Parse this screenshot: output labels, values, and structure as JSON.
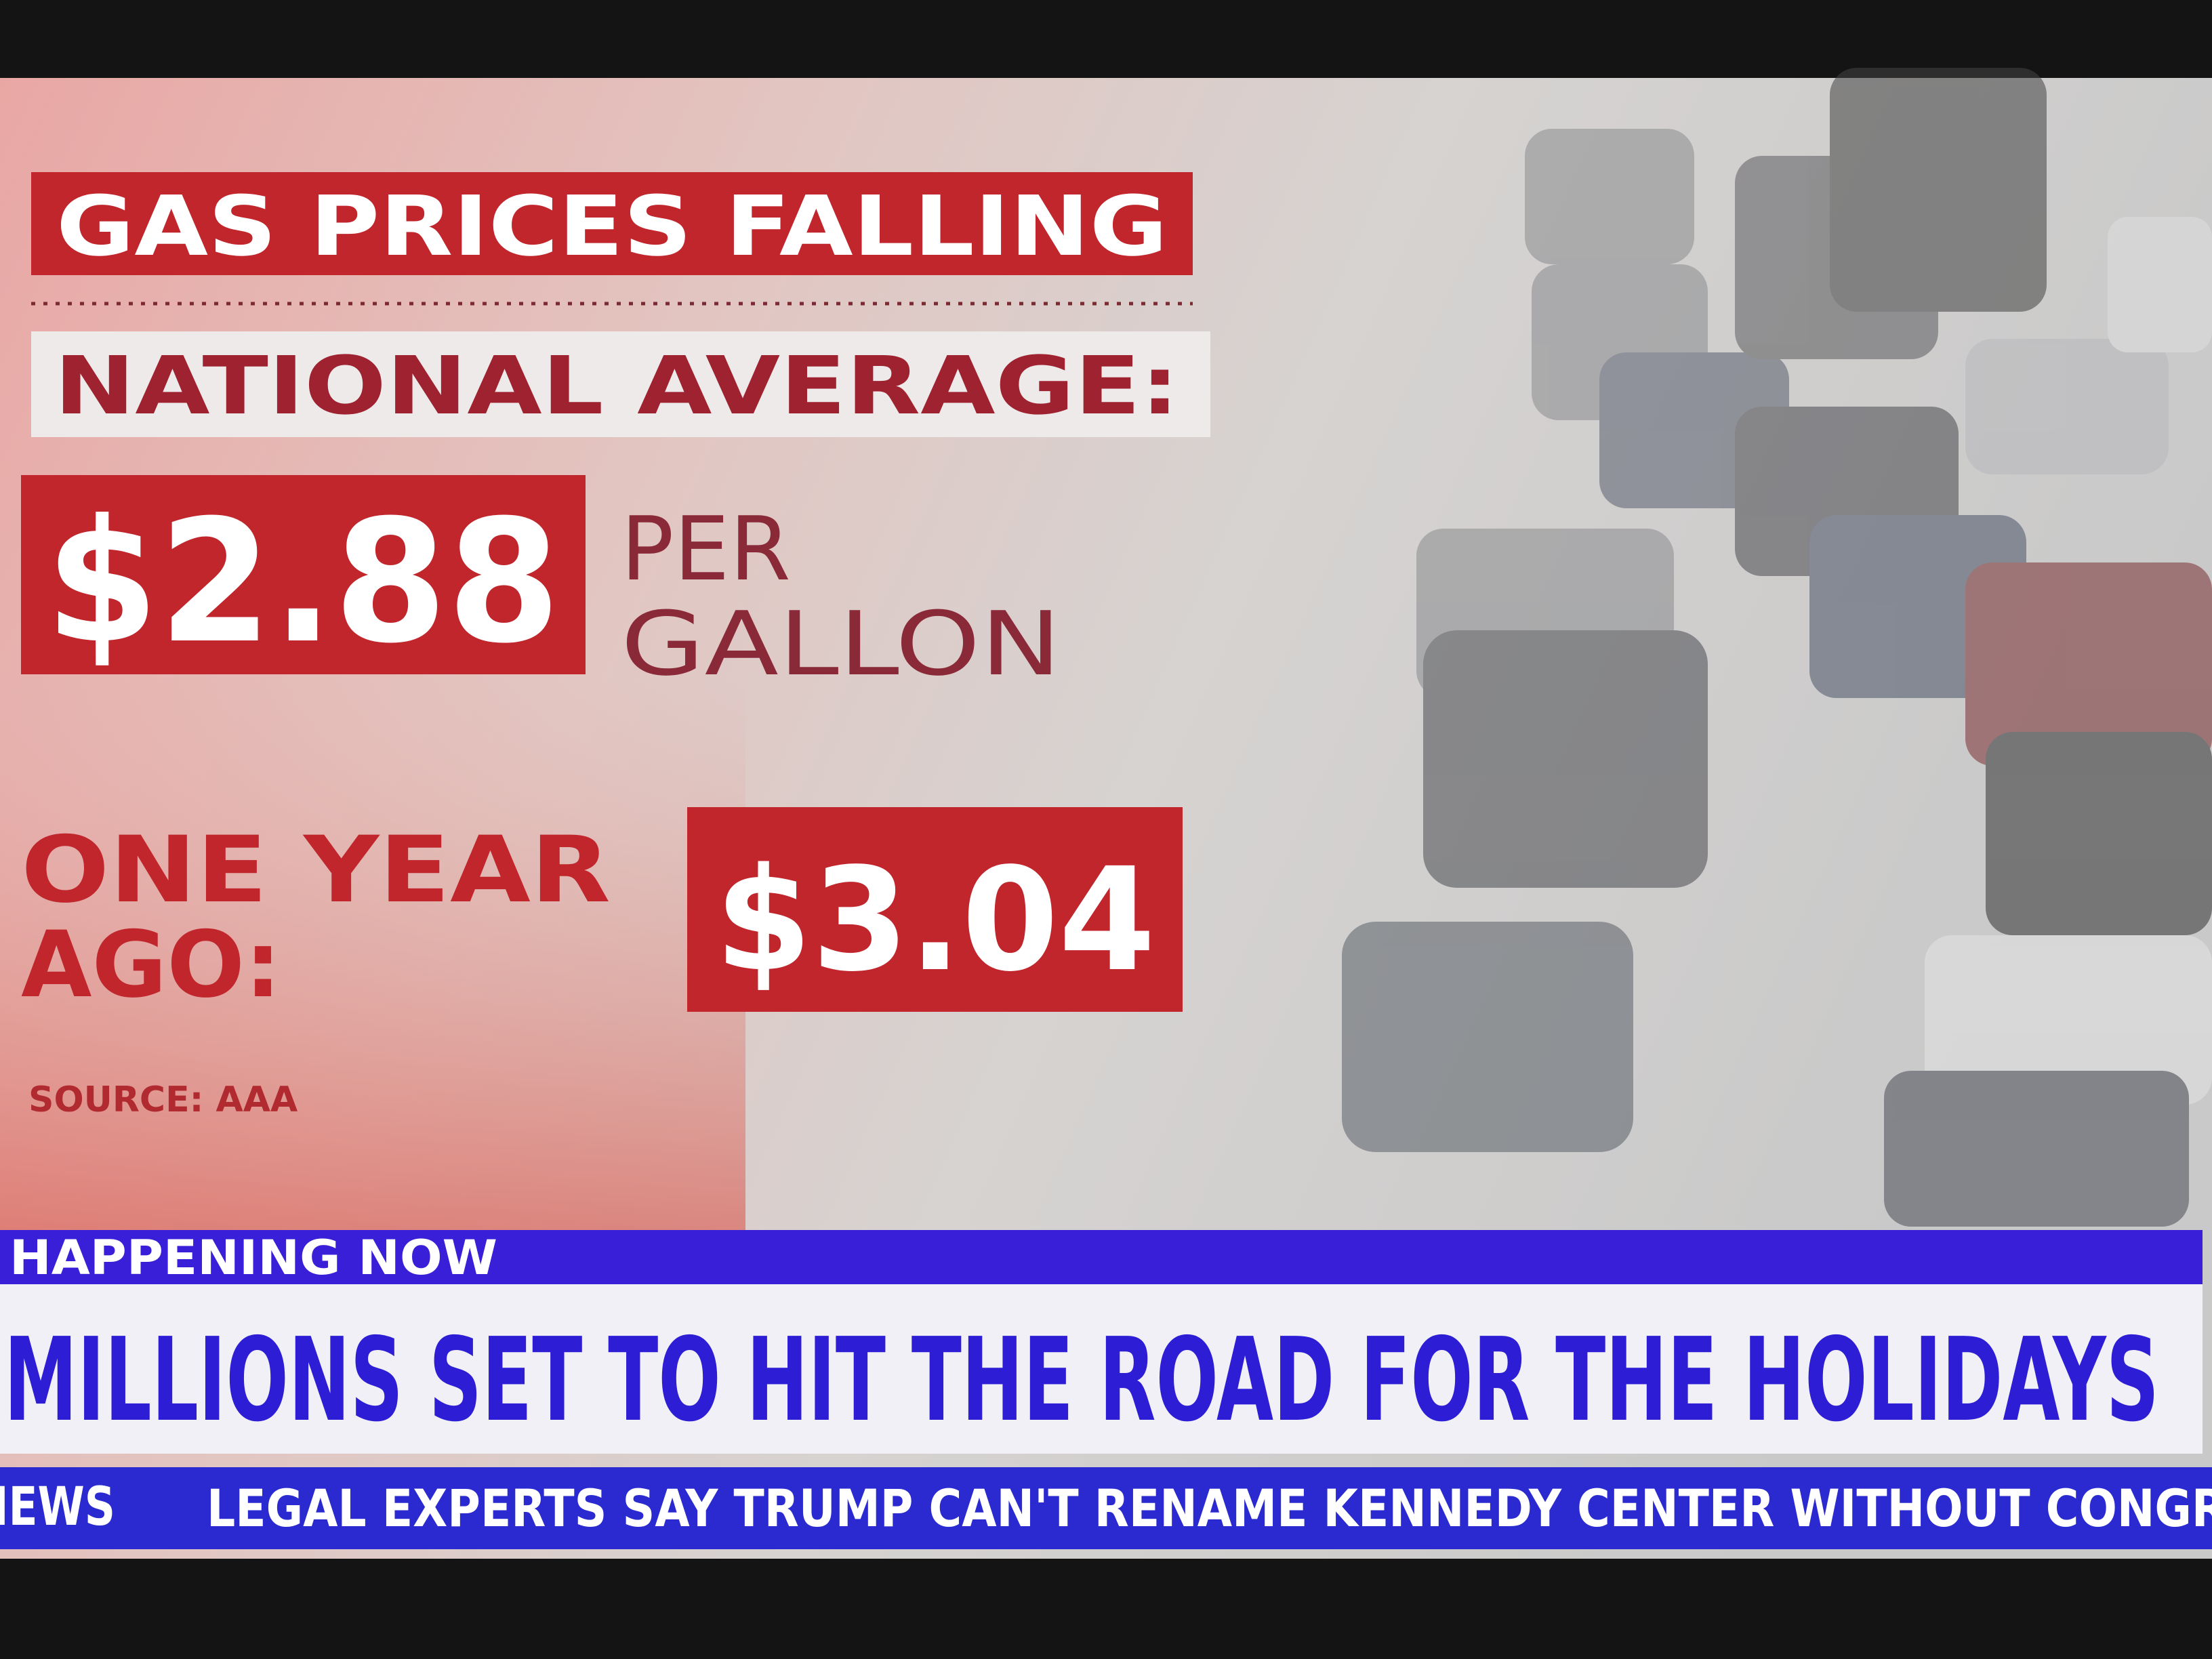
{
  "graphic": {
    "title": "GAS PRICES FALLING",
    "subtitle": "NATIONAL AVERAGE:",
    "current_price": "$2.88",
    "unit_line1": "PER",
    "unit_line2": "GALLON",
    "previous_label_line1": "ONE YEAR",
    "previous_label_line2": "AGO:",
    "previous_price": "$3.04",
    "source": "SOURCE: AAA"
  },
  "lower_third": {
    "label": "HAPPENING NOW",
    "headline": "MILLIONS SET TO HIT THE ROAD FOR THE HOLIDAYS"
  },
  "ticker": {
    "brand": "NEWS",
    "text": "LEGAL EXPERTS SAY TRUMP CAN'T RENAME KENNEDY CENTER WITHOUT CONGR"
  }
}
